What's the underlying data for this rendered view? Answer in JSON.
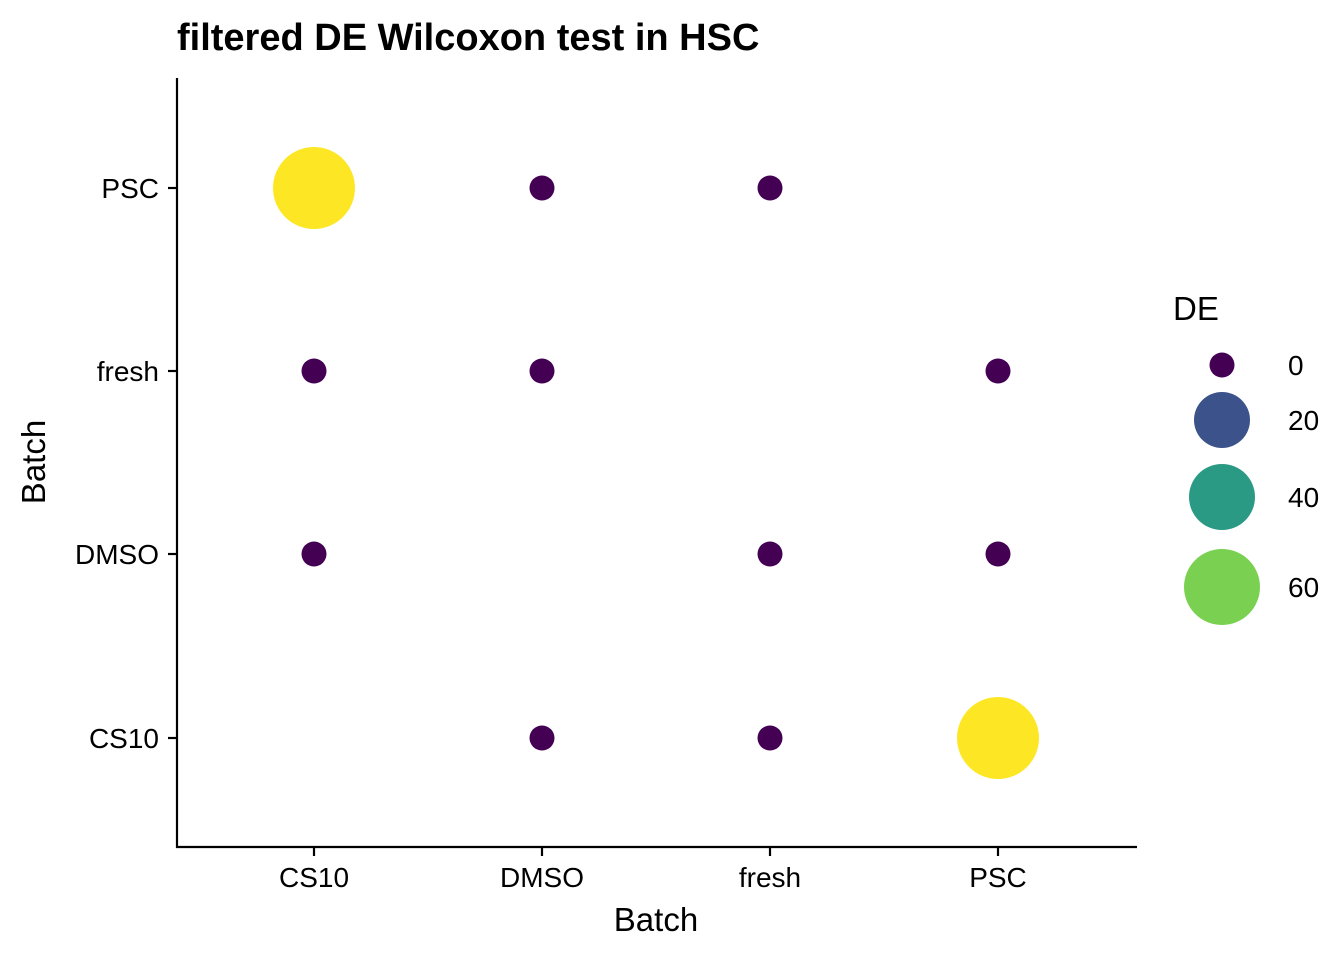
{
  "chart_data": {
    "type": "scatter",
    "subtype": "dot-matrix (bubble)",
    "title": "filtered DE Wilcoxon test in HSC",
    "xlabel": "Batch",
    "ylabel": "Batch",
    "x_categories": [
      "CS10",
      "DMSO",
      "fresh",
      "PSC"
    ],
    "y_categories": [
      "CS10",
      "DMSO",
      "fresh",
      "PSC"
    ],
    "points": [
      {
        "x": "CS10",
        "y": "PSC",
        "de": 72
      },
      {
        "x": "DMSO",
        "y": "PSC",
        "de": 0
      },
      {
        "x": "fresh",
        "y": "PSC",
        "de": 0
      },
      {
        "x": "CS10",
        "y": "fresh",
        "de": 0
      },
      {
        "x": "DMSO",
        "y": "fresh",
        "de": 0
      },
      {
        "x": "PSC",
        "y": "fresh",
        "de": 0
      },
      {
        "x": "CS10",
        "y": "DMSO",
        "de": 0
      },
      {
        "x": "fresh",
        "y": "DMSO",
        "de": 0
      },
      {
        "x": "PSC",
        "y": "DMSO",
        "de": 0
      },
      {
        "x": "DMSO",
        "y": "CS10",
        "de": 0
      },
      {
        "x": "fresh",
        "y": "CS10",
        "de": 0
      },
      {
        "x": "PSC",
        "y": "CS10",
        "de": 72
      }
    ],
    "size_range": [
      0,
      72
    ],
    "legend": {
      "title": "DE",
      "position": "right",
      "entries": [
        {
          "value": 0,
          "label": "0",
          "color": "#440154"
        },
        {
          "value": 20,
          "label": "20",
          "color": "#3B528B"
        },
        {
          "value": 40,
          "label": "40",
          "color": "#2A9A85"
        },
        {
          "value": 60,
          "label": "60",
          "color": "#7AD151"
        }
      ]
    },
    "colors": {
      "low": "#440154",
      "high": "#FDE725",
      "viridis": [
        "#440154",
        "#3B528B",
        "#21908C",
        "#5DC863",
        "#FDE725"
      ]
    },
    "grid": false
  }
}
